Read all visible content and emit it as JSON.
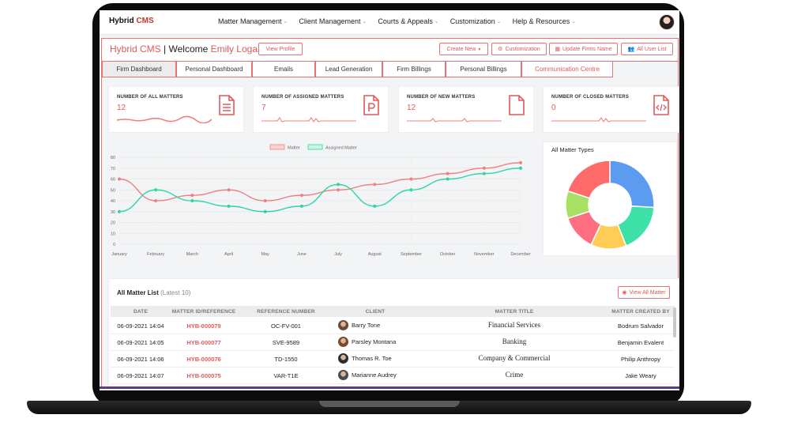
{
  "brand": {
    "name": "Hybrid",
    "suffix": "CMS"
  },
  "nav": {
    "items": [
      {
        "label": "Matter Management"
      },
      {
        "label": "Client Management"
      },
      {
        "label": "Courts & Appeals"
      },
      {
        "label": "Customization"
      },
      {
        "label": "Help & Resources"
      }
    ]
  },
  "header": {
    "app": "Hybrid CMS",
    "separator": "|",
    "welcome": "Welcome",
    "user": "Emily Logan",
    "view_profile": "View Profile",
    "create_new": "Create New",
    "customization": "Customization",
    "update_firm": "Update Firms Name",
    "all_users": "All User List"
  },
  "tabs": [
    {
      "label": "Firm Dashboard"
    },
    {
      "label": "Personal Dashboard"
    },
    {
      "label": "Emails"
    },
    {
      "label": "Lead Generation"
    },
    {
      "label": "Firm Billings"
    },
    {
      "label": "Personal Billings"
    },
    {
      "label": "Communication Centre"
    }
  ],
  "cards": [
    {
      "title": "NUMBER OF ALL MATTERS",
      "value": "12",
      "icon": "document-lines-icon"
    },
    {
      "title": "NUMBER OF ASSIGNED MATTERS",
      "value": "7",
      "icon": "document-p-icon"
    },
    {
      "title": "NUMBER OF NEW MATTERS",
      "value": "12",
      "icon": "document-blank-icon"
    },
    {
      "title": "NUMBER OF CLOSED MATTERS",
      "value": "0",
      "icon": "document-code-icon"
    }
  ],
  "colors": {
    "accent": "#e05a5a",
    "matter": "#f08080",
    "assigned": "#2fd6a3"
  },
  "chart_data": {
    "type": "line",
    "categories": [
      "January",
      "February",
      "March",
      "April",
      "May",
      "June",
      "July",
      "August",
      "September",
      "October",
      "November",
      "December"
    ],
    "series": [
      {
        "name": "Matter",
        "values": [
          60,
          40,
          45,
          50,
          40,
          45,
          50,
          55,
          60,
          65,
          70,
          75
        ]
      },
      {
        "name": "Assigned Matter",
        "values": [
          30,
          50,
          40,
          35,
          30,
          35,
          55,
          35,
          50,
          60,
          65,
          70
        ]
      }
    ],
    "ylim": [
      0,
      80
    ],
    "yticks": [
      "0",
      "10",
      "20",
      "30",
      "40",
      "50",
      "60",
      "70",
      "80"
    ],
    "grid": true,
    "legend": "top-center"
  },
  "pie": {
    "title": "All Matter Types",
    "type": "pie",
    "slices": [
      {
        "value": 26,
        "color": "#5b9bf0"
      },
      {
        "value": 18,
        "color": "#3de0a7"
      },
      {
        "value": 13,
        "color": "#ffcc55"
      },
      {
        "value": 13,
        "color": "#ff6f82"
      },
      {
        "value": 10,
        "color": "#a8e063"
      },
      {
        "value": 20,
        "color": "#ff6b6b"
      }
    ]
  },
  "table": {
    "title": "All Matter List",
    "subtitle": "(Latest 10)",
    "view_all": "View All Matter",
    "headers": [
      "DATE",
      "MATTER ID/REFERENCE",
      "REFERENCE NUMBER",
      "CLIENT",
      "MATTER TITLE",
      "MATTER CREATED BY"
    ],
    "rows": [
      {
        "date": "06-09-2021 14:04",
        "id": "HYB-000079",
        "ref": "OC-FV-001",
        "client": "Barry Tone",
        "title": "Financial Services",
        "by": "Bodrum Salvador"
      },
      {
        "date": "06-09-2021 14:05",
        "id": "HYB-000077",
        "ref": "SVE-9589",
        "client": "Parsley Montana",
        "title": "Banking",
        "by": "Benjamin Evalent"
      },
      {
        "date": "06-09-2021 14:06",
        "id": "HYB-000076",
        "ref": "TD-1550",
        "client": "Thomas R. Toe",
        "title": "Company & Commercial",
        "by": "Philip Anthropy"
      },
      {
        "date": "06-09-2021 14:07",
        "id": "HYB-000075",
        "ref": "VAR-T1E",
        "client": "Marianne Audrey",
        "title": "Crime",
        "by": "Jake Weary"
      }
    ]
  }
}
